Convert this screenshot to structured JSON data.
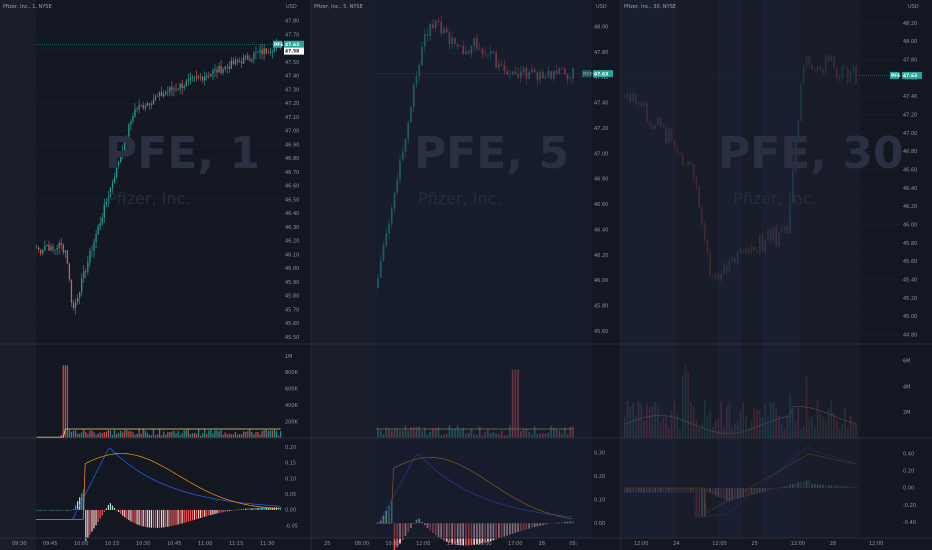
{
  "colors": {
    "background": "#131722",
    "up": "#26a69a",
    "down": "#ef5350",
    "volume_ma": "#f5d37a",
    "macd_line": "#2962ff",
    "signal_line": "#ff9800",
    "hist_up_strong": "#26a69a",
    "hist_up_weak": "#b2dfdb",
    "hist_down_strong": "#ef5350",
    "hist_down_weak": "#ffcdd2",
    "price_line": "#26a69a",
    "session_shade": "#1a1e2b",
    "night_shade": "#1b2035",
    "grid": "#1e2230"
  },
  "chart_data": [
    {
      "type": "candlestick",
      "header": "Pfizer, Inc., 1, NYSE",
      "watermark": "PFE, 1",
      "watermark_sub": "Pfizer, Inc.",
      "currency": "USD",
      "last_price_label": "47.63",
      "last_price_label2": "47.58",
      "ticker_badge": "PFE",
      "price_ticks": [
        "47.80",
        "47.70",
        "47.60",
        "47.50",
        "47.40",
        "47.30",
        "47.20",
        "47.10",
        "47.00",
        "46.90",
        "46.80",
        "46.70",
        "46.60",
        "46.50",
        "46.40",
        "46.30",
        "46.20",
        "46.10",
        "46.00",
        "45.90",
        "45.80",
        "45.70",
        "45.60",
        "45.50"
      ],
      "ylim": [
        45.45,
        47.85
      ],
      "volume_ticks": [
        "1M",
        "800K",
        "600K",
        "400K",
        "200K"
      ],
      "volume_max": 1000000,
      "macd_ticks": [
        "0.20",
        "0.15",
        "0.10",
        "0.05",
        "0.00",
        "-0.05"
      ],
      "macd_range": [
        -0.08,
        0.22
      ],
      "time_ticks": [
        "09:30",
        "09:45",
        "10:00",
        "10:15",
        "10:30",
        "10:45",
        "11:00",
        "11:15",
        "11:30"
      ],
      "notes": "1-minute candles, premarket flat ~46.15, dip to ~45.65 at open, steady rally to ~47.63"
    },
    {
      "type": "candlestick",
      "header": "Pfizer, Inc., 5, NYSE",
      "watermark": "PFE, 5",
      "watermark_sub": "Pfizer, Inc.",
      "currency": "USD",
      "last_price_label": "47.63",
      "ticker_badge": "PFE",
      "price_ticks": [
        "48.00",
        "47.80",
        "47.60",
        "47.40",
        "47.20",
        "47.00",
        "46.80",
        "46.60",
        "46.40",
        "46.20",
        "46.00",
        "45.80",
        "45.60"
      ],
      "ylim": [
        45.5,
        48.1
      ],
      "volume_ticks": [],
      "macd_ticks": [
        "0.30",
        "0.20",
        "0.10",
        "0.00"
      ],
      "macd_range": [
        -0.05,
        0.35
      ],
      "time_ticks": [
        "25",
        "08:00",
        "10:00",
        "12:00",
        "13:00",
        "15:00",
        "17:00",
        "28",
        "05:"
      ],
      "notes": "5-minute candles, premarket ~45.8, rally from open to ~48.0, settle ~47.63"
    },
    {
      "type": "candlestick",
      "header": "Pfizer, Inc., 30, NYSE",
      "watermark": "PFE, 30",
      "watermark_sub": "Pfizer, Inc.",
      "currency": "USD",
      "last_price_label": "47.63",
      "ticker_badge": "PFE",
      "price_ticks": [
        "48.20",
        "48.00",
        "47.80",
        "47.60",
        "47.40",
        "47.20",
        "47.00",
        "46.80",
        "46.60",
        "46.40",
        "46.20",
        "46.00",
        "45.80",
        "45.60",
        "45.40",
        "45.20",
        "45.00",
        "44.80"
      ],
      "ylim": [
        44.7,
        48.3
      ],
      "volume_ticks": [
        "6M",
        "4M",
        "2M"
      ],
      "macd_ticks": [
        "0.40",
        "0.20",
        "0.00",
        "-0.20",
        "-0.40"
      ],
      "macd_range": [
        -0.55,
        0.55
      ],
      "time_ticks": [
        "12:00",
        "24",
        "12:00",
        "25",
        "12:00",
        "28",
        "12:00"
      ],
      "notes": "30-minute candles over several sessions, decline to ~45.1, recovery to ~48.0"
    }
  ]
}
